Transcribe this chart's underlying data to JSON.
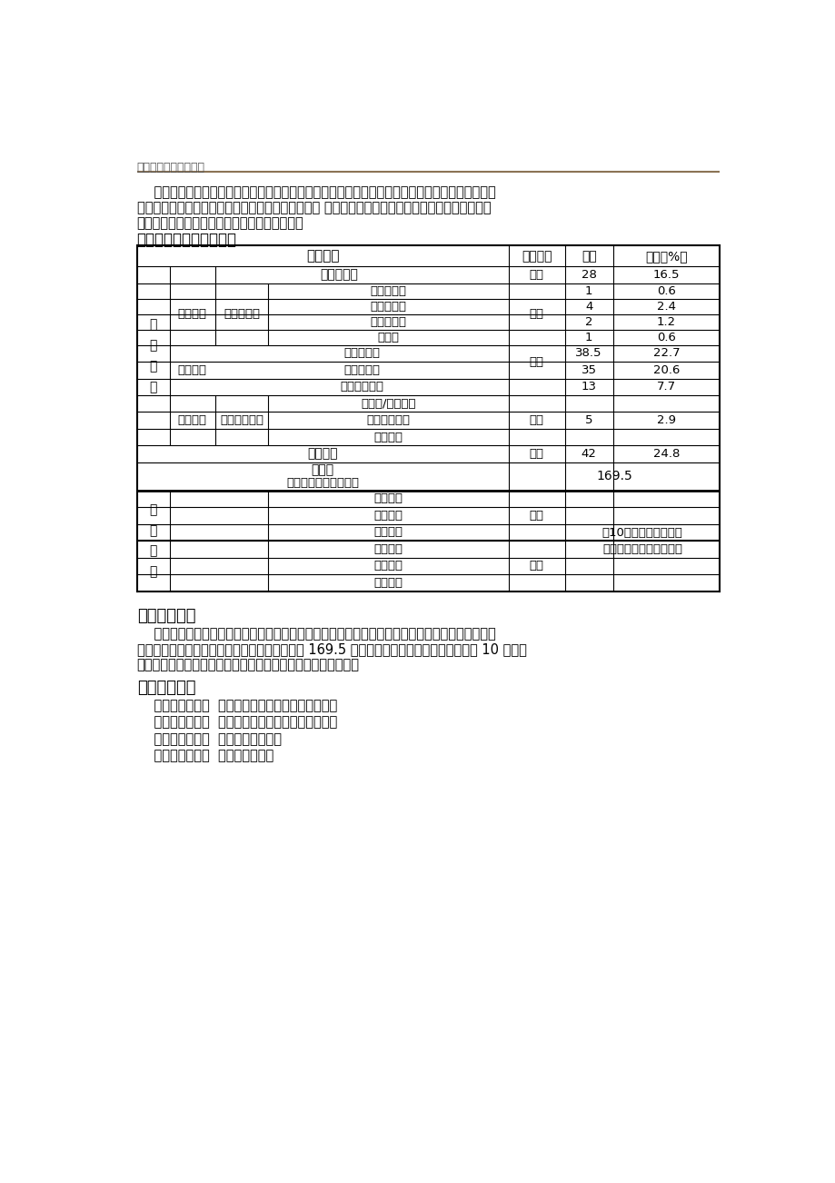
{
  "page_header": "河海大学本科培养方案",
  "intro_line1": "    本专业基于我校特色按材料种类分设了两大专业方向，一个是土木工程材料方向，特色是高性能混",
  "intro_line2": "凝土材料在大坝等工程中的应用及检测与修复技术等 另一个是金属材料方向，特色是金属材料的腐蚀",
  "intro_line3": "行为与金属表面工程技术、金属检测与分析等。",
  "section7_title": "七、课程框架及学分要求",
  "section8_title": "八、毕业条件",
  "section8_line1": "    修完人才培养方案中要求的通识课程、专业课程、个性课程及实践课程，成绩合格，且各部分所得",
  "section8_line2": "学分均不少于相应规定学分数，累计获得不少于 169.5 学分，同时素质拓展学分获得不少于 10 学分方",
  "section8_line3": "可毕业；符合河海大学学位授予条件者，可申请授予学士学位。",
  "appendix_title": "附：教学计划",
  "appendix_item1": "    材料科学与工程  专业指导性教学计划（理论教学）",
  "appendix_item2": "    材料科学与工程  专业指导性教学计划（实践教学）",
  "appendix_item3": "    材料科学与工程  专业辅修教学计划",
  "appendix_item4": "    材料科学与工程  专业学程安排表",
  "header_line_color": "#8B7355",
  "bg_color": "#ffffff"
}
